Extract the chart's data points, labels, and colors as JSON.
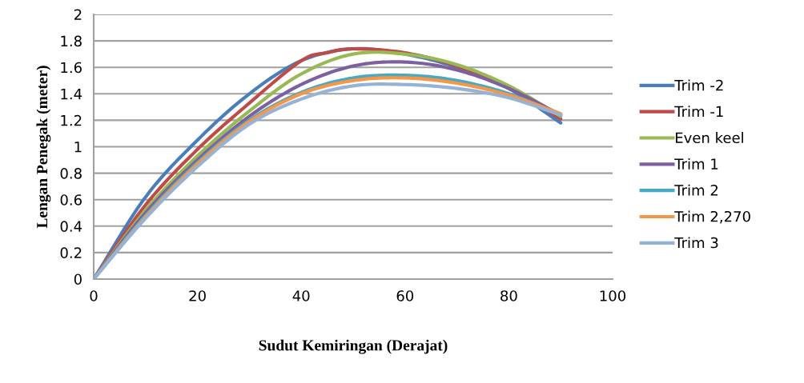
{
  "chart_data": {
    "type": "line",
    "xlabel": "Sudut Kemiringan (Derajat)",
    "ylabel": "Lengan Penegak (meter)",
    "x": [
      0,
      10,
      20,
      30,
      40,
      50,
      60,
      70,
      80,
      90
    ],
    "series": [
      {
        "name": "Trim -2",
        "color": "#4a7ebb",
        "values": [
          0,
          0.62,
          1.05,
          1.4,
          1.65,
          1.74,
          1.7,
          1.6,
          1.44,
          1.18
        ]
      },
      {
        "name": "Trim -1",
        "color": "#be4b48",
        "x": [
          0,
          10,
          20,
          30,
          40,
          45,
          50,
          60,
          70,
          80,
          90
        ],
        "values": [
          0,
          0.56,
          0.98,
          1.33,
          1.65,
          1.71,
          1.74,
          1.71,
          1.61,
          1.45,
          1.21
        ]
      },
      {
        "name": "Even keel",
        "color": "#98b954",
        "values": [
          0,
          0.52,
          0.93,
          1.27,
          1.55,
          1.7,
          1.7,
          1.62,
          1.46,
          1.23
        ]
      },
      {
        "name": "Trim 1",
        "color": "#7d60a0",
        "values": [
          0,
          0.5,
          0.9,
          1.23,
          1.47,
          1.61,
          1.64,
          1.58,
          1.44,
          1.24
        ]
      },
      {
        "name": "Trim 2",
        "color": "#46aac5",
        "values": [
          0,
          0.48,
          0.88,
          1.2,
          1.41,
          1.52,
          1.54,
          1.5,
          1.4,
          1.24
        ]
      },
      {
        "name": "Trim 2,270",
        "color": "#f79646",
        "values": [
          0,
          0.47,
          0.87,
          1.19,
          1.4,
          1.5,
          1.52,
          1.48,
          1.39,
          1.25
        ]
      },
      {
        "name": "Trim 3",
        "color": "#95b3d7",
        "values": [
          0,
          0.46,
          0.85,
          1.17,
          1.36,
          1.46,
          1.47,
          1.44,
          1.37,
          1.24
        ]
      }
    ],
    "xlim": [
      0,
      100
    ],
    "xticks": [
      0,
      20,
      40,
      60,
      80,
      100
    ],
    "ylim": [
      0,
      2
    ],
    "yticks": [
      0,
      0.2,
      0.4,
      0.6,
      0.8,
      1,
      1.2,
      1.4,
      1.6,
      1.8,
      2
    ],
    "grid": "y",
    "legend": "right",
    "marker": "none",
    "line_style": "solid"
  }
}
